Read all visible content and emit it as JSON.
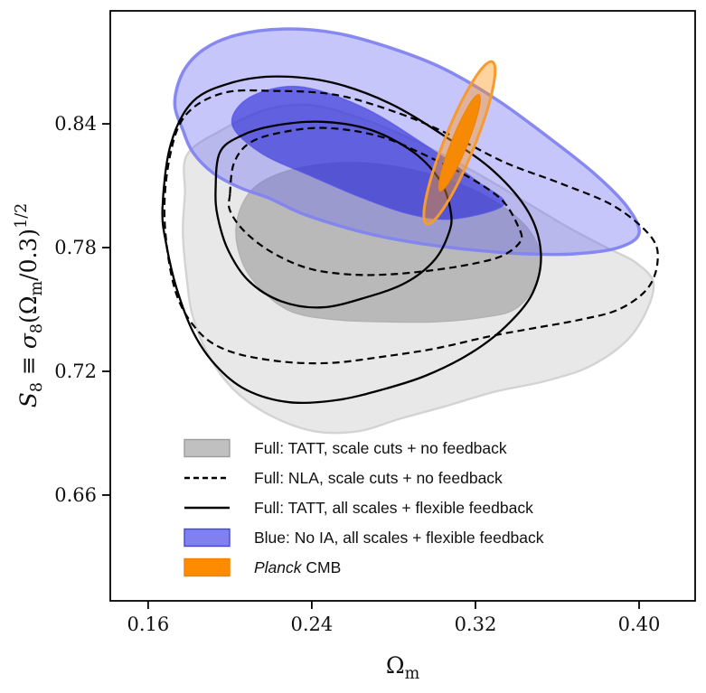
{
  "figure": {
    "background": "#ffffff",
    "frame_color": "#000000"
  },
  "chart_data": {
    "type": "contour",
    "title": "",
    "xlabel": {
      "tokens": [
        {
          "t": "Ω"
        },
        {
          "t": "m",
          "p": "sub"
        }
      ]
    },
    "ylabel": {
      "tokens": [
        {
          "t": "S",
          "i": 1
        },
        {
          "t": "8",
          "p": "sub"
        },
        {
          "t": " ≡ "
        },
        {
          "t": "σ",
          "i": 1
        },
        {
          "t": "8",
          "p": "sub"
        },
        {
          "t": "(Ω"
        },
        {
          "t": "m",
          "p": "sub"
        },
        {
          "t": "/0.3)"
        },
        {
          "t": "1/2",
          "p": "sup"
        }
      ]
    },
    "xlim": [
      0.1415,
      0.4274
    ],
    "ylim": [
      0.6087,
      0.8948
    ],
    "grid": false,
    "xticks": {
      "values": [
        0.16,
        0.24,
        0.32,
        0.4
      ],
      "labels": [
        "0.16",
        "0.24",
        "0.32",
        "0.40"
      ]
    },
    "yticks": {
      "values": [
        0.66,
        0.72,
        0.78,
        0.84
      ],
      "labels": [
        "0.66",
        "0.72",
        "0.78",
        "0.84"
      ]
    },
    "contours": [
      {
        "id": "tatt-scalecuts",
        "label": "Full: TATT, scale cuts + no feedback",
        "render": "fill",
        "fill_outer": "#e8e8e8",
        "stroke_outer": "#d3d3d3",
        "fill_inner": "#b9b9b9",
        "stroke_inner": "#b2b2b2",
        "outer": [
          [
            0.179,
            0.825
          ],
          [
            0.196,
            0.837
          ],
          [
            0.218,
            0.847
          ],
          [
            0.24,
            0.849
          ],
          [
            0.266,
            0.842
          ],
          [
            0.292,
            0.831
          ],
          [
            0.319,
            0.817
          ],
          [
            0.343,
            0.803
          ],
          [
            0.365,
            0.79
          ],
          [
            0.384,
            0.78
          ],
          [
            0.398,
            0.773
          ],
          [
            0.407,
            0.763
          ],
          [
            0.403,
            0.748
          ],
          [
            0.393,
            0.734
          ],
          [
            0.375,
            0.722
          ],
          [
            0.353,
            0.715
          ],
          [
            0.329,
            0.71
          ],
          [
            0.305,
            0.703
          ],
          [
            0.283,
            0.697
          ],
          [
            0.263,
            0.691
          ],
          [
            0.241,
            0.691
          ],
          [
            0.219,
            0.699
          ],
          [
            0.202,
            0.711
          ],
          [
            0.19,
            0.727
          ],
          [
            0.182,
            0.746
          ],
          [
            0.179,
            0.764
          ],
          [
            0.177,
            0.787
          ],
          [
            0.178,
            0.806
          ]
        ],
        "inner": [
          [
            0.203,
            0.79
          ],
          [
            0.209,
            0.806
          ],
          [
            0.222,
            0.815
          ],
          [
            0.242,
            0.82
          ],
          [
            0.266,
            0.821
          ],
          [
            0.292,
            0.817
          ],
          [
            0.319,
            0.808
          ],
          [
            0.341,
            0.794
          ],
          [
            0.351,
            0.779
          ],
          [
            0.349,
            0.762
          ],
          [
            0.339,
            0.75
          ],
          [
            0.322,
            0.746
          ],
          [
            0.3,
            0.744
          ],
          [
            0.278,
            0.744
          ],
          [
            0.252,
            0.745
          ],
          [
            0.23,
            0.749
          ],
          [
            0.215,
            0.76
          ],
          [
            0.206,
            0.773
          ]
        ]
      },
      {
        "id": "noia-allscales",
        "label": "Blue: No IA, all scales + flexible feedback",
        "render": "fill",
        "fill_outer": "rgba(104,104,242,0.38)",
        "stroke_outer": "rgba(130,132,240,0.95)",
        "fill_inner": "rgba(44,44,214,0.62)",
        "stroke_inner": "rgba(84,84,228,0.75)",
        "outer": [
          [
            0.173,
            0.85
          ],
          [
            0.177,
            0.865
          ],
          [
            0.187,
            0.876
          ],
          [
            0.203,
            0.883
          ],
          [
            0.226,
            0.886
          ],
          [
            0.252,
            0.884
          ],
          [
            0.278,
            0.877
          ],
          [
            0.304,
            0.867
          ],
          [
            0.33,
            0.852
          ],
          [
            0.355,
            0.834
          ],
          [
            0.378,
            0.816
          ],
          [
            0.394,
            0.8
          ],
          [
            0.4,
            0.787
          ],
          [
            0.39,
            0.78
          ],
          [
            0.369,
            0.777
          ],
          [
            0.343,
            0.777
          ],
          [
            0.317,
            0.779
          ],
          [
            0.293,
            0.782
          ],
          [
            0.271,
            0.786
          ],
          [
            0.252,
            0.791
          ],
          [
            0.234,
            0.797
          ],
          [
            0.219,
            0.804
          ],
          [
            0.205,
            0.809
          ],
          [
            0.192,
            0.816
          ],
          [
            0.182,
            0.826
          ],
          [
            0.177,
            0.837
          ]
        ],
        "inner": [
          [
            0.201,
            0.84
          ],
          [
            0.21,
            0.853
          ],
          [
            0.234,
            0.858
          ],
          [
            0.265,
            0.848
          ],
          [
            0.295,
            0.83
          ],
          [
            0.321,
            0.812
          ],
          [
            0.334,
            0.801
          ],
          [
            0.31,
            0.794
          ],
          [
            0.289,
            0.796
          ],
          [
            0.265,
            0.804
          ],
          [
            0.239,
            0.815
          ],
          [
            0.215,
            0.826
          ]
        ]
      },
      {
        "id": "nla-scalecuts",
        "label": "Full: NLA, scale cuts + no feedback",
        "render": "line",
        "stroke": "#000000",
        "dash": "8 5",
        "width": 2.2,
        "outer": [
          [
            0.168,
            0.795
          ],
          [
            0.171,
            0.826
          ],
          [
            0.179,
            0.845
          ],
          [
            0.197,
            0.855
          ],
          [
            0.221,
            0.856
          ],
          [
            0.252,
            0.854
          ],
          [
            0.283,
            0.845
          ],
          [
            0.309,
            0.834
          ],
          [
            0.335,
            0.821
          ],
          [
            0.362,
            0.811
          ],
          [
            0.388,
            0.8
          ],
          [
            0.406,
            0.785
          ],
          [
            0.409,
            0.773
          ],
          [
            0.404,
            0.76
          ],
          [
            0.39,
            0.75
          ],
          [
            0.371,
            0.745
          ],
          [
            0.349,
            0.741
          ],
          [
            0.327,
            0.737
          ],
          [
            0.3,
            0.731
          ],
          [
            0.274,
            0.727
          ],
          [
            0.248,
            0.724
          ],
          [
            0.223,
            0.725
          ],
          [
            0.199,
            0.73
          ],
          [
            0.184,
            0.74
          ],
          [
            0.173,
            0.76
          ]
        ],
        "inner": [
          [
            0.2,
            0.806
          ],
          [
            0.202,
            0.821
          ],
          [
            0.21,
            0.831
          ],
          [
            0.226,
            0.836
          ],
          [
            0.247,
            0.838
          ],
          [
            0.273,
            0.834
          ],
          [
            0.295,
            0.825
          ],
          [
            0.317,
            0.814
          ],
          [
            0.333,
            0.803
          ],
          [
            0.341,
            0.79
          ],
          [
            0.342,
            0.783
          ],
          [
            0.333,
            0.776
          ],
          [
            0.318,
            0.772
          ],
          [
            0.299,
            0.769
          ],
          [
            0.278,
            0.767
          ],
          [
            0.258,
            0.767
          ],
          [
            0.238,
            0.77
          ],
          [
            0.22,
            0.778
          ],
          [
            0.207,
            0.788
          ],
          [
            0.2,
            0.798
          ]
        ]
      },
      {
        "id": "tatt-allscales",
        "label": "Full: TATT, all scales + flexible feedback",
        "render": "line",
        "stroke": "#000000",
        "dash": null,
        "width": 2.3,
        "outer": [
          [
            0.167,
            0.799
          ],
          [
            0.171,
            0.83
          ],
          [
            0.182,
            0.851
          ],
          [
            0.201,
            0.86
          ],
          [
            0.223,
            0.863
          ],
          [
            0.25,
            0.86
          ],
          [
            0.278,
            0.85
          ],
          [
            0.305,
            0.834
          ],
          [
            0.329,
            0.817
          ],
          [
            0.346,
            0.797
          ],
          [
            0.352,
            0.777
          ],
          [
            0.348,
            0.758
          ],
          [
            0.335,
            0.742
          ],
          [
            0.318,
            0.729
          ],
          [
            0.296,
            0.718
          ],
          [
            0.274,
            0.711
          ],
          [
            0.252,
            0.706
          ],
          [
            0.229,
            0.705
          ],
          [
            0.208,
            0.711
          ],
          [
            0.193,
            0.723
          ],
          [
            0.182,
            0.739
          ],
          [
            0.174,
            0.76
          ],
          [
            0.169,
            0.781
          ]
        ],
        "inner": [
          [
            0.193,
            0.808
          ],
          [
            0.195,
            0.826
          ],
          [
            0.205,
            0.834
          ],
          [
            0.221,
            0.839
          ],
          [
            0.245,
            0.841
          ],
          [
            0.269,
            0.837
          ],
          [
            0.29,
            0.826
          ],
          [
            0.303,
            0.812
          ],
          [
            0.308,
            0.797
          ],
          [
            0.307,
            0.787
          ],
          [
            0.3,
            0.774
          ],
          [
            0.286,
            0.763
          ],
          [
            0.267,
            0.756
          ],
          [
            0.245,
            0.751
          ],
          [
            0.225,
            0.754
          ],
          [
            0.209,
            0.764
          ],
          [
            0.199,
            0.779
          ],
          [
            0.194,
            0.795
          ]
        ]
      },
      {
        "id": "planck-cmb",
        "label": "Planck CMB",
        "render": "ellipse",
        "center": [
          0.3122,
          0.8308
        ],
        "outer_semi": [
          0.0074,
          0.0424
        ],
        "inner_semi": [
          0.0039,
          0.0252
        ],
        "angle_deg": 22,
        "fill_outer": "rgba(255,150,24,0.42)",
        "stroke_outer": "#f79b30",
        "fill_inner": "#f78a05",
        "stroke_inner": "#ef8200"
      }
    ],
    "legend": {
      "position": "lower-center-left",
      "items": [
        {
          "swatch": "patch",
          "fill": "#c0c0c0",
          "border": "#9c9c9c",
          "label": "Full: TATT, scale cuts + no feedback"
        },
        {
          "swatch": "dashed-line",
          "color": "#000000",
          "label": "Full: NLA, scale cuts + no feedback"
        },
        {
          "swatch": "solid-line",
          "color": "#000000",
          "label": "Full: TATT, all scales + flexible feedback"
        },
        {
          "swatch": "patch",
          "fill": "#8080f0",
          "border": "#4646d2",
          "label": "Blue: No IA, all scales + flexible feedback"
        },
        {
          "swatch": "patch",
          "fill": "#ff8c00",
          "border": "#ef8200",
          "label_italic": "Planck",
          "label": " CMB"
        }
      ]
    }
  }
}
